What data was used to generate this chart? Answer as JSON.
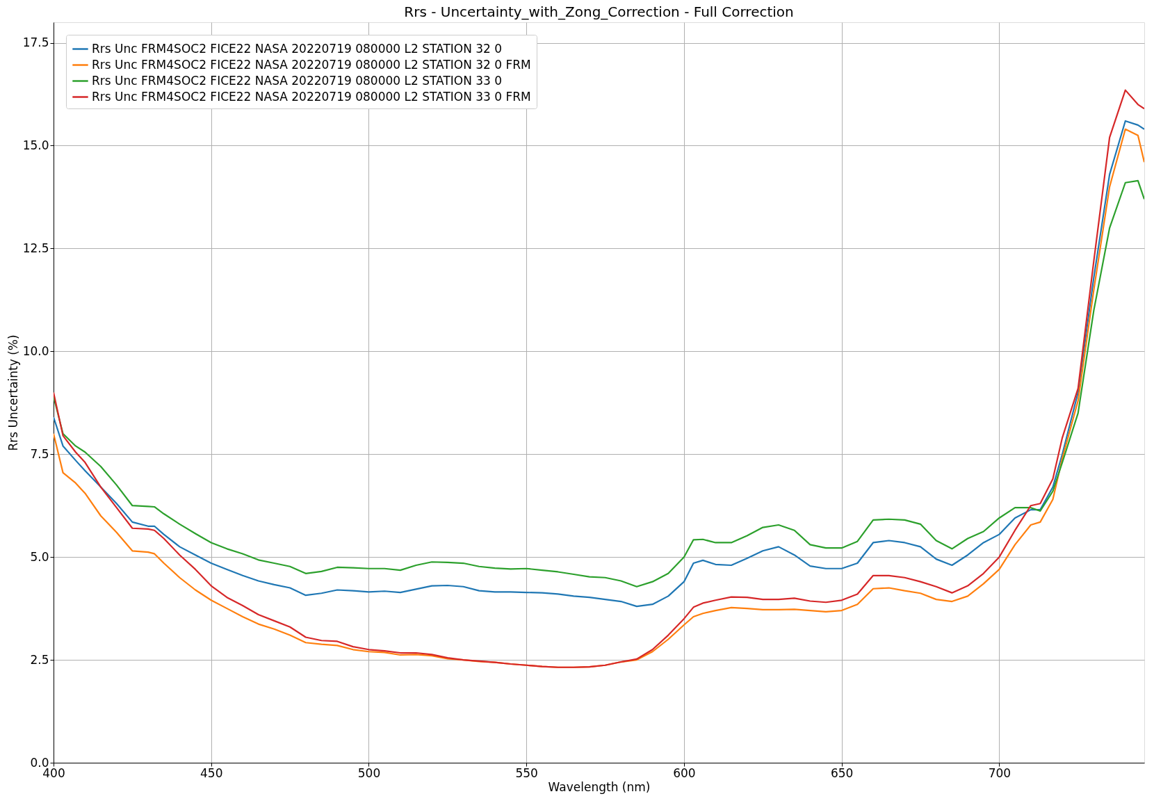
{
  "chart_data": {
    "type": "line",
    "title": "Rrs - Uncertainty_with_Zong_Correction - Full Correction",
    "xlabel": "Wavelength (nm)",
    "ylabel": "Rrs Uncertainty (%)",
    "x": [
      400,
      403,
      407,
      410,
      415,
      420,
      425,
      430,
      432,
      435,
      440,
      445,
      450,
      455,
      460,
      465,
      470,
      475,
      480,
      485,
      490,
      495,
      500,
      505,
      510,
      515,
      520,
      525,
      530,
      535,
      540,
      545,
      550,
      555,
      560,
      565,
      570,
      575,
      580,
      585,
      590,
      595,
      600,
      603,
      606,
      610,
      615,
      620,
      625,
      630,
      635,
      640,
      645,
      650,
      655,
      660,
      665,
      670,
      675,
      680,
      685,
      690,
      695,
      700,
      705,
      710,
      713,
      717,
      720,
      725,
      730,
      735,
      740,
      744,
      746
    ],
    "series": [
      {
        "name": "Rrs Unc FRM4SOC2 FICE22 NASA 20220719 080000 L2 STATION 32 0",
        "color": "#1f77b4",
        "values": [
          8.4,
          7.7,
          7.35,
          7.1,
          6.7,
          6.3,
          5.85,
          5.75,
          5.75,
          5.55,
          5.25,
          5.05,
          4.85,
          4.7,
          4.55,
          4.42,
          4.33,
          4.25,
          4.07,
          4.12,
          4.2,
          4.18,
          4.15,
          4.17,
          4.14,
          4.22,
          4.3,
          4.31,
          4.28,
          4.18,
          4.15,
          4.15,
          4.14,
          4.13,
          4.1,
          4.05,
          4.02,
          3.97,
          3.92,
          3.8,
          3.85,
          4.05,
          4.4,
          4.85,
          4.92,
          4.82,
          4.8,
          4.97,
          5.15,
          5.25,
          5.05,
          4.78,
          4.72,
          4.72,
          4.85,
          5.35,
          5.4,
          5.35,
          5.25,
          4.95,
          4.8,
          5.05,
          5.35,
          5.55,
          5.95,
          6.15,
          6.15,
          6.7,
          7.5,
          9.0,
          11.8,
          14.3,
          15.6,
          15.5,
          15.4
        ]
      },
      {
        "name": "Rrs Unc FRM4SOC2 FICE22 NASA 20220719 080000 L2 STATION 32 0 FRM",
        "color": "#ff7f0e",
        "values": [
          8.0,
          7.05,
          6.8,
          6.55,
          6.0,
          5.6,
          5.15,
          5.12,
          5.08,
          4.85,
          4.5,
          4.2,
          3.95,
          3.75,
          3.55,
          3.37,
          3.25,
          3.1,
          2.92,
          2.88,
          2.85,
          2.75,
          2.7,
          2.68,
          2.62,
          2.63,
          2.6,
          2.53,
          2.5,
          2.46,
          2.44,
          2.4,
          2.37,
          2.34,
          2.32,
          2.32,
          2.33,
          2.37,
          2.45,
          2.5,
          2.7,
          3.0,
          3.35,
          3.55,
          3.63,
          3.7,
          3.77,
          3.75,
          3.72,
          3.72,
          3.73,
          3.7,
          3.67,
          3.7,
          3.85,
          4.23,
          4.25,
          4.18,
          4.12,
          3.97,
          3.92,
          4.05,
          4.35,
          4.7,
          5.3,
          5.78,
          5.85,
          6.4,
          7.4,
          8.8,
          11.5,
          14.0,
          15.4,
          15.25,
          14.6
        ]
      },
      {
        "name": "Rrs Unc FRM4SOC2 FICE22 NASA 20220719 080000 L2 STATION 33 0",
        "color": "#2ca02c",
        "values": [
          8.9,
          8.0,
          7.7,
          7.55,
          7.2,
          6.75,
          6.25,
          6.23,
          6.22,
          6.05,
          5.8,
          5.57,
          5.35,
          5.2,
          5.08,
          4.93,
          4.85,
          4.77,
          4.6,
          4.65,
          4.75,
          4.74,
          4.72,
          4.72,
          4.68,
          4.8,
          4.88,
          4.87,
          4.85,
          4.77,
          4.73,
          4.71,
          4.72,
          4.68,
          4.64,
          4.58,
          4.52,
          4.5,
          4.42,
          4.28,
          4.4,
          4.6,
          5.0,
          5.42,
          5.43,
          5.35,
          5.35,
          5.52,
          5.72,
          5.78,
          5.65,
          5.3,
          5.22,
          5.22,
          5.38,
          5.9,
          5.92,
          5.9,
          5.8,
          5.4,
          5.2,
          5.45,
          5.62,
          5.95,
          6.2,
          6.2,
          6.12,
          6.6,
          7.3,
          8.5,
          11.0,
          13.0,
          14.1,
          14.15,
          13.7
        ]
      },
      {
        "name": "Rrs Unc FRM4SOC2 FICE22 NASA 20220719 080000 L2 STATION 33 0 FRM",
        "color": "#d62728",
        "values": [
          9.0,
          7.95,
          7.55,
          7.3,
          6.7,
          6.2,
          5.7,
          5.68,
          5.65,
          5.45,
          5.05,
          4.7,
          4.3,
          4.02,
          3.82,
          3.6,
          3.45,
          3.3,
          3.05,
          2.97,
          2.95,
          2.82,
          2.75,
          2.72,
          2.67,
          2.67,
          2.63,
          2.55,
          2.5,
          2.47,
          2.44,
          2.4,
          2.37,
          2.34,
          2.32,
          2.32,
          2.33,
          2.37,
          2.45,
          2.52,
          2.75,
          3.1,
          3.5,
          3.78,
          3.88,
          3.95,
          4.03,
          4.02,
          3.97,
          3.97,
          4.0,
          3.93,
          3.9,
          3.95,
          4.1,
          4.55,
          4.55,
          4.5,
          4.4,
          4.28,
          4.13,
          4.3,
          4.6,
          5.0,
          5.65,
          6.25,
          6.3,
          6.9,
          7.9,
          9.1,
          12.2,
          15.2,
          16.35,
          16.0,
          15.9
        ]
      }
    ],
    "xlim": [
      400,
      746
    ],
    "xticks": [
      400,
      450,
      500,
      550,
      600,
      650,
      700
    ],
    "ylim": [
      0,
      18
    ],
    "yticks": [
      {
        "value": 0,
        "label": "0.0"
      },
      2.5,
      {
        "value": 5,
        "label": "5.0"
      },
      7.5,
      {
        "value": 10,
        "label": "10.0"
      },
      12.5,
      {
        "value": 15,
        "label": "15.0"
      },
      17.5
    ],
    "grid": true,
    "legend": "top left",
    "line_style": "solid",
    "marker": "none"
  }
}
